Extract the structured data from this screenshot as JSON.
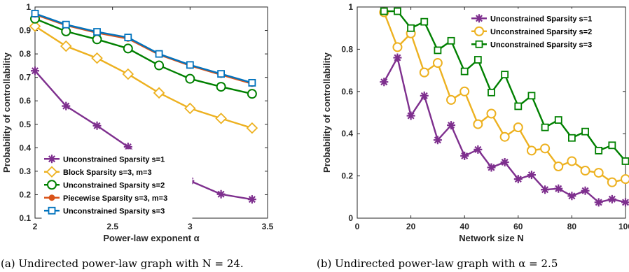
{
  "colors": {
    "purple": "#7E2F8E",
    "yellow": "#EDB120",
    "green": "#008000",
    "orange": "#D95319",
    "blue": "#0072BD"
  },
  "chart_data": [
    {
      "type": "line",
      "xlabel": "Power-law exponent α",
      "ylabel": "Probability of controllability",
      "xlim": [
        2,
        3.5
      ],
      "ylim": [
        0.1,
        1
      ],
      "xticks": [
        "2",
        "2.5",
        "3",
        "3.5"
      ],
      "yticks": [
        "0.1",
        "0.2",
        "0.3",
        "0.4",
        "0.5",
        "0.6",
        "0.7",
        "0.8",
        "0.9",
        "1"
      ],
      "legend_position": "bottom-left",
      "x": [
        2,
        2.2,
        2.4,
        2.6,
        2.8,
        3.0,
        3.2,
        3.4
      ],
      "series": [
        {
          "name": "Unconstrained Sparsity s=1",
          "color": "#7E2F8E",
          "marker": "star",
          "values": [
            0.728,
            0.578,
            0.494,
            0.404,
            0.308,
            0.259,
            0.202,
            0.18
          ]
        },
        {
          "name": "Block Sparsity s=3, m=3",
          "color": "#EDB120",
          "marker": "diamond",
          "values": [
            0.918,
            0.833,
            0.782,
            0.714,
            0.634,
            0.568,
            0.525,
            0.484
          ]
        },
        {
          "name": "Unconstrained Sparsity s=2",
          "color": "#008000",
          "marker": "circle",
          "values": [
            0.95,
            0.896,
            0.862,
            0.823,
            0.751,
            0.694,
            0.66,
            0.63
          ]
        },
        {
          "name": "Piecewise Sparsity s=3, m=3",
          "color": "#D95319",
          "marker": "dot",
          "values": [
            0.968,
            0.922,
            0.89,
            0.865,
            0.797,
            0.75,
            0.711,
            0.673
          ]
        },
        {
          "name": "Unconstrained Sparsity s=3",
          "color": "#0072BD",
          "marker": "square",
          "values": [
            0.972,
            0.925,
            0.894,
            0.87,
            0.8,
            0.753,
            0.715,
            0.677
          ]
        }
      ]
    },
    {
      "type": "line",
      "xlabel": "Network size N",
      "ylabel": "Probability of controllability",
      "xlim": [
        0,
        100
      ],
      "ylim": [
        0,
        1
      ],
      "xticks": [
        "0",
        "20",
        "40",
        "60",
        "80",
        "100"
      ],
      "yticks": [
        "0",
        "0.2",
        "0.4",
        "0.6",
        "0.8",
        "1"
      ],
      "legend_position": "top-right",
      "x": [
        10,
        15,
        20,
        25,
        30,
        35,
        40,
        45,
        50,
        55,
        60,
        65,
        70,
        75,
        80,
        85,
        90,
        95,
        100
      ],
      "series": [
        {
          "name": "Unconstrained Sparsity s=1",
          "color": "#7E2F8E",
          "marker": "star",
          "values": [
            0.645,
            0.76,
            0.485,
            0.58,
            0.37,
            0.44,
            0.295,
            0.325,
            0.24,
            0.265,
            0.185,
            0.205,
            0.135,
            0.14,
            0.105,
            0.13,
            0.075,
            0.09,
            0.075
          ]
        },
        {
          "name": "Unconstrained Sparsity s=2",
          "color": "#EDB120",
          "marker": "circle",
          "values": [
            0.975,
            0.81,
            0.875,
            0.69,
            0.735,
            0.56,
            0.6,
            0.445,
            0.495,
            0.385,
            0.43,
            0.32,
            0.33,
            0.245,
            0.27,
            0.225,
            0.215,
            0.17,
            0.185
          ]
        },
        {
          "name": "Unconstrained Sparsity s=3",
          "color": "#008000",
          "marker": "square",
          "values": [
            0.98,
            0.98,
            0.9,
            0.93,
            0.795,
            0.84,
            0.695,
            0.75,
            0.595,
            0.68,
            0.53,
            0.58,
            0.43,
            0.465,
            0.38,
            0.41,
            0.32,
            0.345,
            0.27
          ]
        }
      ]
    }
  ],
  "captions": {
    "left": "(a) Undirected power-law graph with N = 24.",
    "right": "(b) Undirected power-law graph with α = 2.5"
  }
}
